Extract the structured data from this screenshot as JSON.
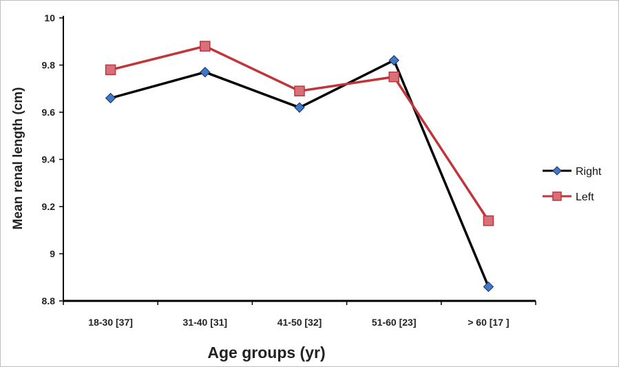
{
  "chart_data": {
    "type": "line",
    "xlabel": "Age groups (yr)",
    "ylabel": "Mean renal length (cm)",
    "categories": [
      "18-30 [37]",
      "31-40 [31]",
      "41-50 [32]",
      "51-60 [23]",
      "> 60 [17 ]"
    ],
    "ylim": [
      8.8,
      10
    ],
    "yticks": [
      8.8,
      9,
      9.2,
      9.4,
      9.6,
      9.8,
      10
    ],
    "ytick_labels": [
      "8.8",
      "9",
      "9.2",
      "9.4",
      "9.6",
      "9.8",
      "10"
    ],
    "grid": false,
    "legend_position": "right",
    "series": [
      {
        "name": "Right",
        "marker": "diamond",
        "color": "#000000",
        "marker_color": "#3e78c8",
        "values": [
          9.66,
          9.77,
          9.62,
          9.82,
          8.86
        ]
      },
      {
        "name": "Left",
        "marker": "square",
        "color": "#c0343a",
        "marker_color": "#d8707a",
        "values": [
          9.78,
          9.88,
          9.69,
          9.75,
          9.14
        ]
      }
    ]
  }
}
